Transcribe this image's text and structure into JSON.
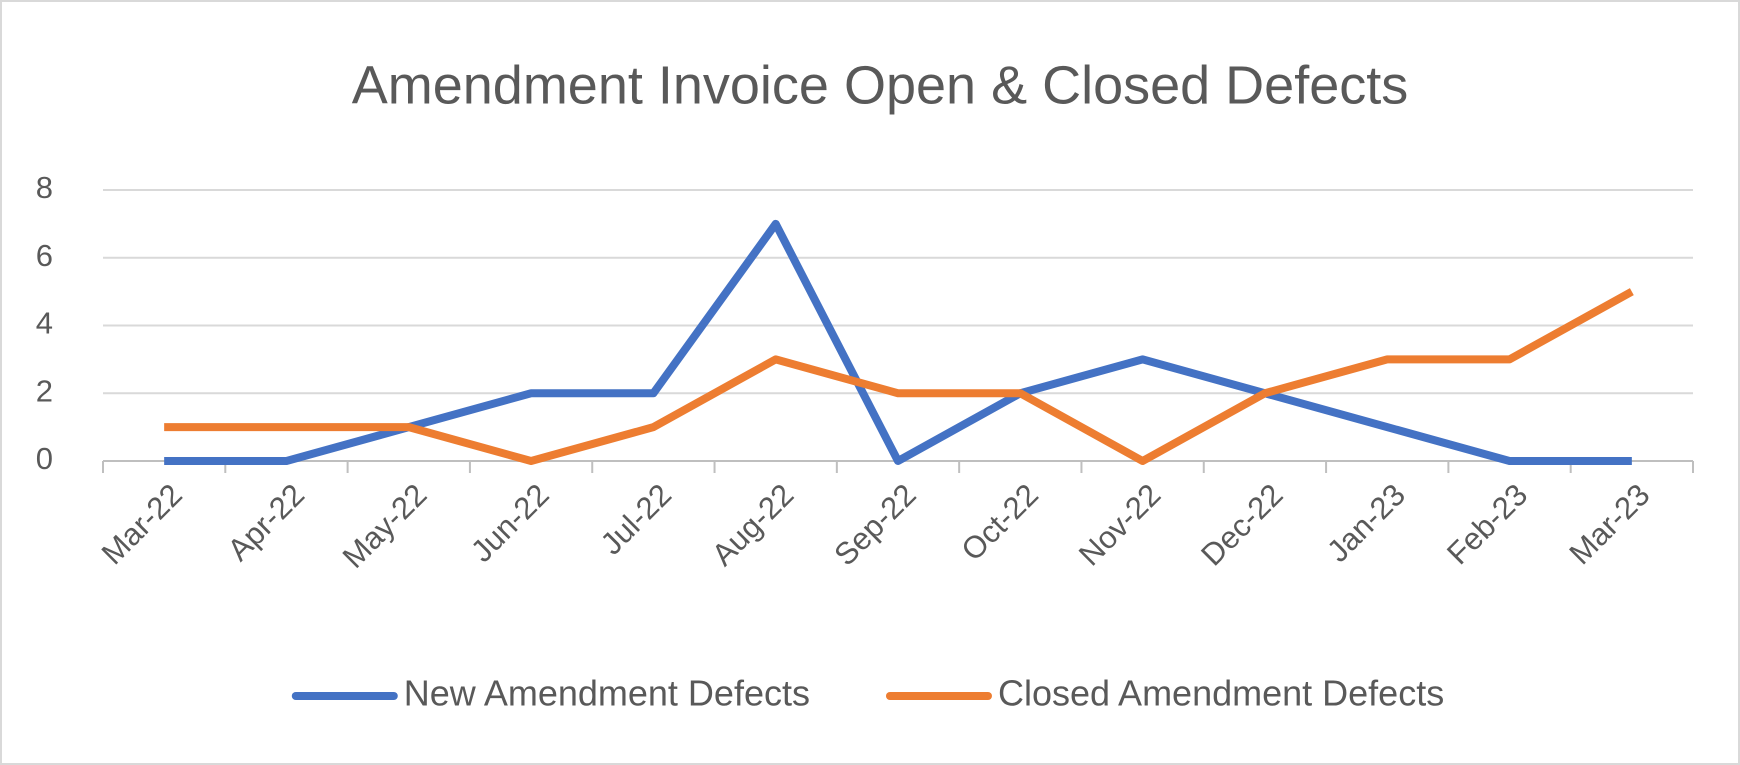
{
  "chart_data": {
    "type": "line",
    "title": "Amendment Invoice Open & Closed Defects",
    "categories": [
      "Mar-22",
      "Apr-22",
      "May-22",
      "Jun-22",
      "Jul-22",
      "Aug-22",
      "Sep-22",
      "Oct-22",
      "Nov-22",
      "Dec-22",
      "Jan-23",
      "Feb-23",
      "Mar-23"
    ],
    "series": [
      {
        "name": "New Amendment Defects",
        "color": "#4472c4",
        "values": [
          0,
          0,
          1,
          2,
          2,
          7,
          0,
          2,
          3,
          2,
          1,
          0,
          0
        ]
      },
      {
        "name": "Closed Amendment Defects",
        "color": "#ed7d31",
        "values": [
          1,
          1,
          1,
          0,
          1,
          3,
          2,
          2,
          0,
          2,
          3,
          3,
          5
        ]
      }
    ],
    "ylim": [
      0,
      8
    ],
    "yticks": [
      0,
      2,
      4,
      6,
      8
    ],
    "grid": true,
    "legend": "bottom"
  }
}
